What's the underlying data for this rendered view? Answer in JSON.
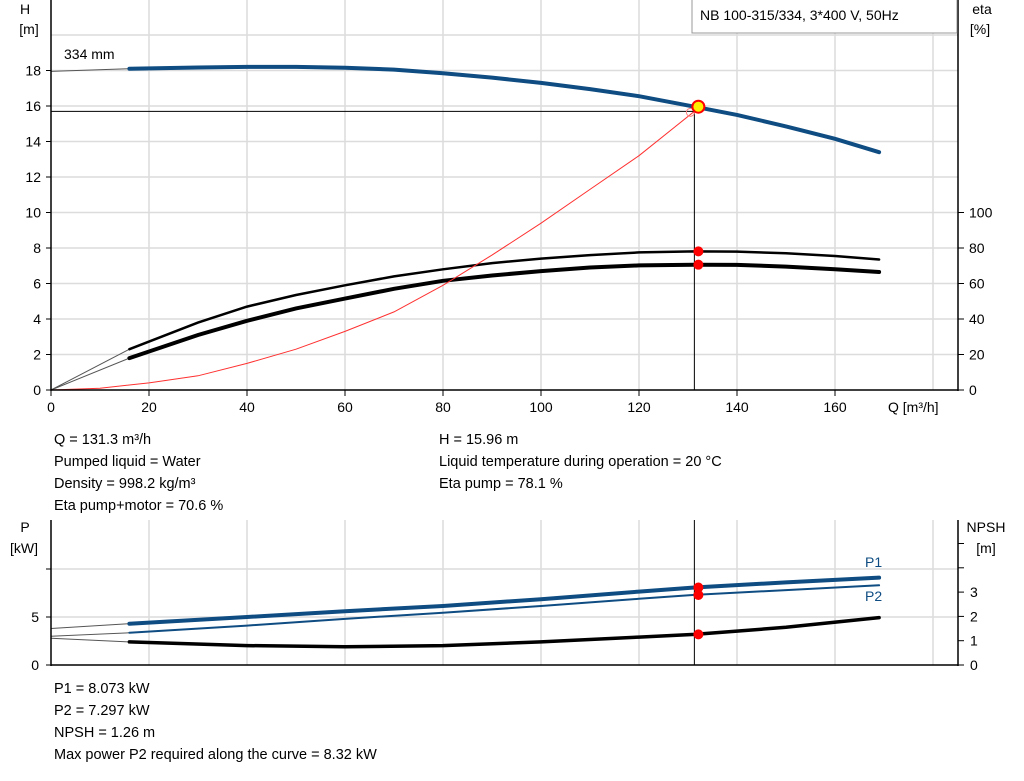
{
  "chart_data": [
    {
      "type": "line",
      "title": "NB 100-315/334, 3*400 V, 50Hz",
      "xlabel": "Q [m³/h]",
      "ylabel_left": [
        "H",
        "[m]"
      ],
      "ylabel_right": [
        "eta",
        "[%]"
      ],
      "xlim": [
        0,
        185
      ],
      "ylim_left": [
        0,
        22
      ],
      "ylim_right": [
        0,
        220
      ],
      "x_ticks": [
        "0",
        "20",
        "40",
        "60",
        "80",
        "100",
        "120",
        "140",
        "160"
      ],
      "y_ticks_left": [
        "0",
        "2",
        "4",
        "6",
        "8",
        "10",
        "12",
        "14",
        "16",
        "18"
      ],
      "y_ticks_right": [
        "0",
        "20",
        "40",
        "60",
        "80",
        "100"
      ],
      "grid": true,
      "curve_label": "334 mm",
      "series": [
        {
          "key": "H",
          "axis": "left",
          "color": "#0e4c82",
          "x": [
            16,
            30,
            40,
            50,
            60,
            70,
            80,
            90,
            100,
            110,
            120,
            131.3,
            140,
            150,
            160,
            169
          ],
          "y": [
            18.1,
            18.17,
            18.2,
            18.2,
            18.15,
            18.05,
            17.85,
            17.6,
            17.3,
            16.95,
            16.55,
            15.96,
            15.5,
            14.85,
            14.15,
            13.4
          ],
          "extrapolated": {
            "x": [
              0,
              16
            ],
            "y": [
              17.95,
              18.1
            ]
          }
        },
        {
          "key": "eta_pump",
          "axis": "right",
          "color": "#000000",
          "x": [
            16,
            30,
            40,
            50,
            60,
            70,
            80,
            90,
            100,
            110,
            120,
            131.3,
            140,
            150,
            160,
            169
          ],
          "y": [
            23,
            38,
            47,
            53.5,
            59,
            64,
            68,
            71.5,
            74,
            76,
            77.5,
            78.1,
            78,
            77,
            75.5,
            73.5
          ],
          "extrapolated": {
            "x": [
              0,
              16
            ],
            "y": [
              0,
              23
            ]
          }
        },
        {
          "key": "eta_pump_motor",
          "axis": "right",
          "color": "#000000",
          "x": [
            16,
            30,
            40,
            50,
            60,
            70,
            80,
            90,
            100,
            110,
            120,
            131.3,
            140,
            150,
            160,
            169
          ],
          "y": [
            18,
            31,
            39,
            46,
            51.5,
            57,
            61.5,
            64.5,
            67,
            69,
            70.2,
            70.6,
            70.5,
            69.5,
            68,
            66.5
          ],
          "extrapolated": {
            "x": [
              0,
              16
            ],
            "y": [
              0,
              18
            ]
          }
        },
        {
          "key": "system",
          "axis": "left",
          "color": "#ff3030",
          "x": [
            0,
            10,
            20,
            30,
            40,
            50,
            60,
            70,
            80,
            90,
            100,
            110,
            120,
            131.3
          ],
          "y": [
            0,
            0.1,
            0.4,
            0.8,
            1.5,
            2.3,
            3.3,
            4.4,
            5.9,
            7.6,
            9.4,
            11.3,
            13.2,
            15.7
          ]
        }
      ],
      "duty_point": {
        "Q": 131.3,
        "H": 15.96,
        "eta_pump": 78.1,
        "eta_pump_motor": 70.6,
        "H_line": 15.7
      }
    },
    {
      "type": "line",
      "ylabel_left": [
        "P",
        "[kW]"
      ],
      "ylabel_right": [
        "NPSH",
        "[m]"
      ],
      "xlim": [
        0,
        185
      ],
      "ylim_left": [
        0,
        15
      ],
      "ylim_right": [
        0,
        6
      ],
      "y_ticks_left": [
        "0",
        "5"
      ],
      "y_ticks_right": [
        "0",
        "1",
        "2",
        "3"
      ],
      "grid": true,
      "series": [
        {
          "key": "P1",
          "name": "P1",
          "axis": "left",
          "color": "#0e4c82",
          "x": [
            16,
            40,
            60,
            80,
            100,
            120,
            131.3,
            150,
            169
          ],
          "y": [
            4.3,
            5.0,
            5.6,
            6.15,
            6.85,
            7.65,
            8.073,
            8.6,
            9.1
          ],
          "extrapolated": {
            "x": [
              0,
              16
            ],
            "y": [
              3.8,
              4.3
            ]
          }
        },
        {
          "key": "P2",
          "name": "P2",
          "axis": "left",
          "color": "#0e4c82",
          "x": [
            16,
            40,
            60,
            80,
            100,
            120,
            131.3,
            150,
            169
          ],
          "y": [
            3.35,
            4.1,
            4.8,
            5.45,
            6.15,
            6.9,
            7.297,
            7.8,
            8.3
          ],
          "extrapolated": {
            "x": [
              0,
              16
            ],
            "y": [
              3.0,
              3.35
            ]
          }
        },
        {
          "key": "NPSH",
          "axis": "right",
          "color": "#000000",
          "x": [
            16,
            40,
            60,
            80,
            100,
            120,
            131.3,
            150,
            169
          ],
          "y": [
            0.95,
            0.8,
            0.75,
            0.8,
            0.95,
            1.15,
            1.26,
            1.55,
            1.95
          ],
          "extrapolated": {
            "x": [
              0,
              16
            ],
            "y": [
              1.1,
              0.95
            ]
          }
        }
      ],
      "duty_point": {
        "Q": 131.3,
        "P1": 8.073,
        "P2": 7.297,
        "NPSH": 1.26
      }
    }
  ],
  "info_top": {
    "left": [
      "Q = 131.3 m³/h",
      "Pumped liquid = Water",
      "Density = 998.2 kg/m³",
      "Eta pump+motor = 70.6 %"
    ],
    "right": [
      "H = 15.96 m",
      "Liquid temperature during operation = 20 °C",
      "Eta pump = 78.1 %"
    ]
  },
  "info_bottom": [
    "P1 = 8.073 kW",
    "P2 = 7.297 kW",
    "NPSH = 1.26 m",
    "Max power P2 required along the curve = 8.32 kW"
  ],
  "colors": {
    "curve_blue": "#0e4c82",
    "duty_point_fill": "#ffee00",
    "duty_point_stroke": "#ff0000",
    "marker": "#ff0000",
    "grid": "#dcdcdc"
  }
}
